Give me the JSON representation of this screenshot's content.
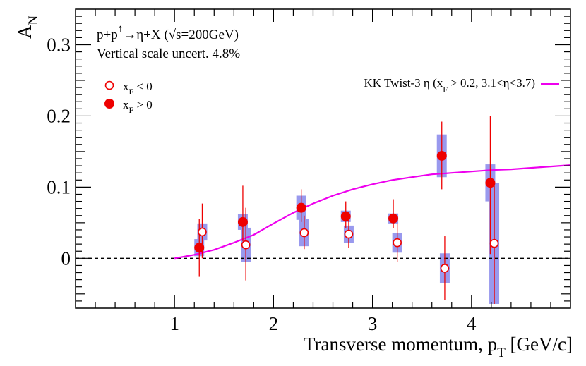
{
  "chart_data": {
    "type": "scatter",
    "title": "",
    "xlabel": "Transverse momentum, p",
    "xlabel_sub": "T",
    "xlabel_units": " [GeV/c]",
    "ylabel": "A",
    "ylabel_sub": "N",
    "xlim": [
      0,
      5
    ],
    "ylim": [
      -0.07,
      0.35
    ],
    "xticks": [
      1,
      2,
      3,
      4
    ],
    "xtick_labels": [
      "1",
      "2",
      "3",
      "4"
    ],
    "yticks": [
      0,
      0.1,
      0.2,
      0.3
    ],
    "ytick_labels": [
      "0",
      "0.1",
      "0.2",
      "0.3"
    ],
    "zero_line": true,
    "annotations": {
      "reaction_prefix": "p+p",
      "reaction_arrow_sup": "↑",
      "reaction_mid": "→η+X (",
      "reaction_sqrt": "√",
      "reaction_energy": "s=200GeV)",
      "scale_uncert": "Vertical scale uncert. 4.8%"
    },
    "series": [
      {
        "name": "x_F < 0",
        "legend_main": "x",
        "legend_sub": "F",
        "legend_rest": " < 0",
        "marker": "open-circle",
        "color": "#ee0000",
        "points": [
          {
            "x": 1.28,
            "y": 0.037,
            "err_lo": 0.037,
            "err_hi": 0.04,
            "sys": 0.012
          },
          {
            "x": 1.72,
            "y": 0.019,
            "err_lo": 0.05,
            "err_hi": 0.052,
            "sys": 0.024
          },
          {
            "x": 2.31,
            "y": 0.036,
            "err_lo": 0.023,
            "err_hi": 0.024,
            "sys": 0.019
          },
          {
            "x": 2.76,
            "y": 0.034,
            "err_lo": 0.019,
            "err_hi": 0.02,
            "sys": 0.012
          },
          {
            "x": 3.25,
            "y": 0.022,
            "err_lo": 0.027,
            "err_hi": 0.027,
            "sys": 0.014
          },
          {
            "x": 3.73,
            "y": -0.014,
            "err_lo": 0.045,
            "err_hi": 0.045,
            "sys": 0.021
          },
          {
            "x": 4.23,
            "y": 0.021,
            "err_lo": 0.085,
            "err_hi": 0.085,
            "sys": 0.085
          }
        ]
      },
      {
        "name": "x_F > 0",
        "legend_main": "x",
        "legend_sub": "F",
        "legend_rest": " > 0",
        "marker": "filled-circle",
        "color": "#ee0000",
        "points": [
          {
            "x": 1.25,
            "y": 0.015,
            "err_lo": 0.041,
            "err_hi": 0.04,
            "sys": 0.012
          },
          {
            "x": 1.69,
            "y": 0.051,
            "err_lo": 0.027,
            "err_hi": 0.051,
            "sys": 0.011
          },
          {
            "x": 2.28,
            "y": 0.071,
            "err_lo": 0.02,
            "err_hi": 0.026,
            "sys": 0.017
          },
          {
            "x": 2.73,
            "y": 0.059,
            "err_lo": 0.016,
            "err_hi": 0.021,
            "sys": 0.008
          },
          {
            "x": 3.21,
            "y": 0.056,
            "err_lo": 0.014,
            "err_hi": 0.027,
            "sys": 0.007
          },
          {
            "x": 3.7,
            "y": 0.144,
            "err_lo": 0.047,
            "err_hi": 0.048,
            "sys": 0.03
          },
          {
            "x": 4.19,
            "y": 0.106,
            "err_lo": 0.1,
            "err_hi": 0.094,
            "sys": 0.026
          }
        ]
      }
    ],
    "curve": {
      "name": "KK Twist-3 η (x_F > 0.2, 3.1<η<3.7)",
      "label_main": "KK Twist-3 η (x",
      "label_sub": "F",
      "label_rest": " > 0.2, 3.1<η<3.7)",
      "color": "#ee00ee",
      "x": [
        1.0,
        1.2,
        1.4,
        1.6,
        1.8,
        2.0,
        2.2,
        2.4,
        2.6,
        2.8,
        3.0,
        3.2,
        3.4,
        3.6,
        3.8,
        4.0,
        4.2,
        4.4,
        4.6,
        4.8,
        5.0
      ],
      "y": [
        0.0,
        0.005,
        0.012,
        0.022,
        0.033,
        0.049,
        0.064,
        0.077,
        0.088,
        0.097,
        0.104,
        0.11,
        0.114,
        0.118,
        0.12,
        0.122,
        0.124,
        0.125,
        0.127,
        0.129,
        0.131
      ]
    },
    "sys_band_color": "#9999ee"
  }
}
